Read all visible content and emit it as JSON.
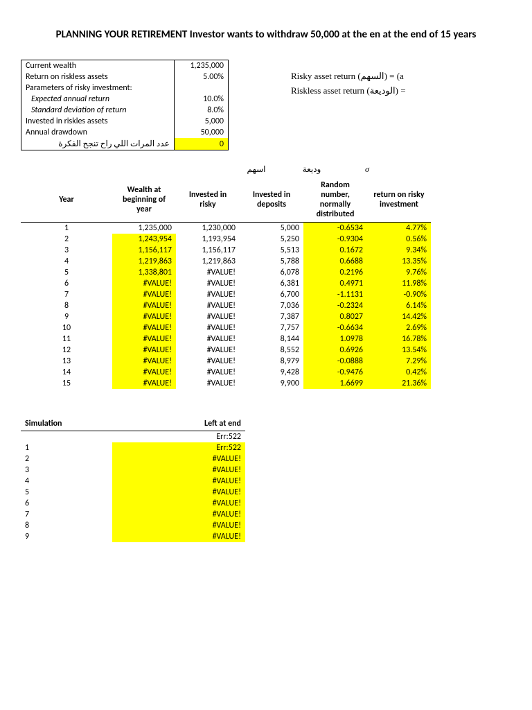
{
  "title": "PLANNING YOUR RETIREMENT Investor wants to withdraw 50,000 at the en\nat the end of 15 years",
  "params": {
    "rows": [
      {
        "label": "Current wealth",
        "value": "1,235,000"
      },
      {
        "label": "Return on riskless assets",
        "value": "5.00%"
      },
      {
        "label": "Parameters of risky investment:",
        "value": ""
      },
      {
        "label": "Expected annual return",
        "value": "10.0%",
        "italic": true
      },
      {
        "label": "Standard deviation of return",
        "value": "8.0%",
        "italic": true
      },
      {
        "label": "Invested in riskles assets",
        "value": "5,000"
      },
      {
        "label": "Annual drawdown",
        "value": "50,000"
      },
      {
        "label": "عدد المرات اللي راح تنجح الفكرة",
        "value": "0",
        "rtl": true,
        "hl": true
      }
    ]
  },
  "side_notes": {
    "line1": "Risky asset return (السهم) = (a",
    "line2": "Riskless asset return (الوديعة) ="
  },
  "col_labels": {
    "risky": "اسهم",
    "deposits": "وديعة",
    "sigma": "σ"
  },
  "headers": {
    "year": "Year",
    "wealth": "Wealth at beginning of year",
    "risky": "Invested in risky",
    "deposits": "Invested in deposits",
    "random": "Random number, normally distributed",
    "return": "return on risky investment"
  },
  "rows": [
    {
      "y": "1",
      "w": "1,235,000",
      "r": "1,230,000",
      "d": "5,000",
      "rn": "-0.6534",
      "ror": "4.77%",
      "w_hl": false
    },
    {
      "y": "2",
      "w": "1,243,954",
      "r": "1,193,954",
      "d": "5,250",
      "rn": "-0.9304",
      "ror": "0.56%",
      "w_hl": true
    },
    {
      "y": "3",
      "w": "1,156,117",
      "r": "1,156,117",
      "d": "5,513",
      "rn": "0.1672",
      "ror": "9.34%",
      "w_hl": true
    },
    {
      "y": "4",
      "w": "1,219,863",
      "r": "1,219,863",
      "d": "5,788",
      "rn": "0.6688",
      "ror": "13.35%",
      "w_hl": true
    },
    {
      "y": "5",
      "w": "1,338,801",
      "r": "#VALUE!",
      "d": "6,078",
      "rn": "0.2196",
      "ror": "9.76%",
      "w_hl": true
    },
    {
      "y": "6",
      "w": "#VALUE!",
      "r": "#VALUE!",
      "d": "6,381",
      "rn": "0.4971",
      "ror": "11.98%",
      "w_hl": true
    },
    {
      "y": "7",
      "w": "#VALUE!",
      "r": "#VALUE!",
      "d": "6,700",
      "rn": "-1.1131",
      "ror": "-0.90%",
      "w_hl": true
    },
    {
      "y": "8",
      "w": "#VALUE!",
      "r": "#VALUE!",
      "d": "7,036",
      "rn": "-0.2324",
      "ror": "6.14%",
      "w_hl": true
    },
    {
      "y": "9",
      "w": "#VALUE!",
      "r": "#VALUE!",
      "d": "7,387",
      "rn": "0.8027",
      "ror": "14.42%",
      "w_hl": true
    },
    {
      "y": "10",
      "w": "#VALUE!",
      "r": "#VALUE!",
      "d": "7,757",
      "rn": "-0.6634",
      "ror": "2.69%",
      "w_hl": true
    },
    {
      "y": "11",
      "w": "#VALUE!",
      "r": "#VALUE!",
      "d": "8,144",
      "rn": "1.0978",
      "ror": "16.78%",
      "w_hl": true
    },
    {
      "y": "12",
      "w": "#VALUE!",
      "r": "#VALUE!",
      "d": "8,552",
      "rn": "0.6926",
      "ror": "13.54%",
      "w_hl": true
    },
    {
      "y": "13",
      "w": "#VALUE!",
      "r": "#VALUE!",
      "d": "8,979",
      "rn": "-0.0888",
      "ror": "7.29%",
      "w_hl": true
    },
    {
      "y": "14",
      "w": "#VALUE!",
      "r": "#VALUE!",
      "d": "9,428",
      "rn": "-0.9476",
      "ror": "0.42%",
      "w_hl": true
    },
    {
      "y": "15",
      "w": "#VALUE!",
      "r": "#VALUE!",
      "d": "9,900",
      "rn": "1.6699",
      "ror": "21.36%",
      "w_hl": true
    }
  ],
  "sim": {
    "h1": "Simulation",
    "h2": "Left at end",
    "top": "Err:522",
    "rows": [
      {
        "n": "1",
        "v": "Err:522"
      },
      {
        "n": "2",
        "v": "#VALUE!"
      },
      {
        "n": "3",
        "v": "#VALUE!"
      },
      {
        "n": "4",
        "v": "#VALUE!"
      },
      {
        "n": "5",
        "v": "#VALUE!"
      },
      {
        "n": "6",
        "v": "#VALUE!"
      },
      {
        "n": "7",
        "v": "#VALUE!"
      },
      {
        "n": "8",
        "v": "#VALUE!"
      },
      {
        "n": "9",
        "v": "#VALUE!"
      }
    ]
  },
  "colors": {
    "highlight": "#ffff00",
    "text": "#000000",
    "bg": "#ffffff"
  }
}
